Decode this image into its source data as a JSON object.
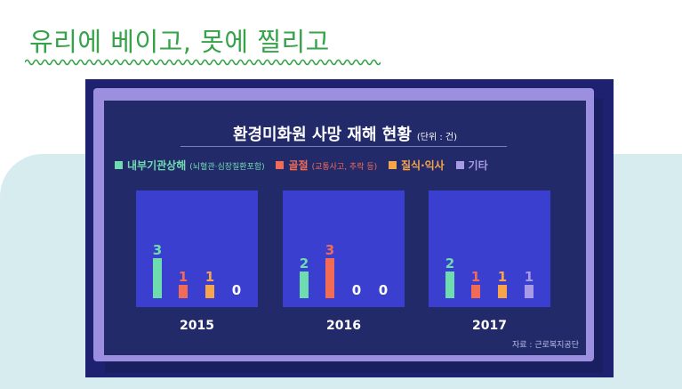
{
  "headline": "유리에 베이고, 못에 찔리고",
  "chart_data": {
    "type": "bar",
    "title": "환경미화원 사망 재해 현황",
    "unit": "(단위 : 건)",
    "categories": [
      "2015",
      "2016",
      "2017"
    ],
    "series": [
      {
        "name": "내부기관상해",
        "note": "(뇌혈관·심장질환포함)",
        "color": "#6fdcb0",
        "values": [
          3,
          2,
          2
        ]
      },
      {
        "name": "골절",
        "note": "(교통사고, 추락 등)",
        "color": "#f26b55",
        "values": [
          1,
          3,
          1
        ]
      },
      {
        "name": "질식·익사",
        "note": "",
        "color": "#f7a54a",
        "values": [
          1,
          0,
          1
        ]
      },
      {
        "name": "기타",
        "note": "",
        "color": "#a99ae6",
        "values": [
          0,
          0,
          1
        ]
      }
    ],
    "ylim": [
      0,
      3
    ],
    "source": "자료 : 근로복지공단"
  }
}
